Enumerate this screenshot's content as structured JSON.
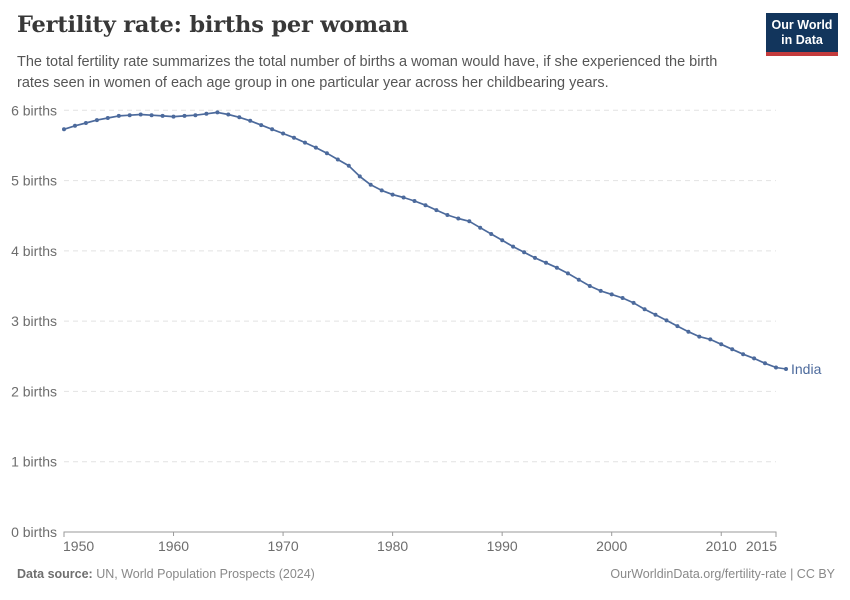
{
  "header": {
    "title": "Fertility rate: births per woman",
    "subtitle": "The total fertility rate summarizes the total number of births a woman would have, if she experienced the birth rates seen in women of each age group in one particular year across her childbearing years.",
    "logo": {
      "line1": "Our World",
      "line2": "in Data"
    }
  },
  "footer": {
    "datasource_label": "Data source:",
    "datasource_value": "UN, World Population Prospects (2024)",
    "attribution": "OurWorldinData.org/fertility-rate | CC BY"
  },
  "colors": {
    "series_blue": "#4c6a9c",
    "gridline": "#e2e2e2",
    "axis_line": "#9a9a9a",
    "tick_label": "#6d6d6d",
    "title_text": "#383838",
    "subtitle_text": "#565656",
    "footer_text": "#898989",
    "logo_navy": "#12355c",
    "logo_red": "#c43b3c"
  },
  "chart_data": {
    "type": "line",
    "title": "Fertility rate: births per woman",
    "xlabel": "",
    "ylabel": "births",
    "ylim": [
      0,
      6
    ],
    "xlim": [
      1950,
      2015
    ],
    "grid": "horizontal-dashed",
    "legend": "end-of-line-label",
    "ytick_values": [
      0,
      1,
      2,
      3,
      4,
      5,
      6
    ],
    "ytick_suffix": " births",
    "xticks": [
      1950,
      1960,
      1970,
      1980,
      1990,
      2000,
      2010,
      2015
    ],
    "x": [
      1950,
      1951,
      1952,
      1953,
      1954,
      1955,
      1956,
      1957,
      1958,
      1959,
      1960,
      1961,
      1962,
      1963,
      1964,
      1965,
      1966,
      1967,
      1968,
      1969,
      1970,
      1971,
      1972,
      1973,
      1974,
      1975,
      1976,
      1977,
      1978,
      1979,
      1980,
      1981,
      1982,
      1983,
      1984,
      1985,
      1986,
      1987,
      1988,
      1989,
      1990,
      1991,
      1992,
      1993,
      1994,
      1995,
      1996,
      1997,
      1998,
      1999,
      2000,
      2001,
      2002,
      2003,
      2004,
      2005,
      2006,
      2007,
      2008,
      2009,
      2010,
      2011,
      2012,
      2013,
      2014,
      2015
    ],
    "series": [
      {
        "name": "India",
        "color": "#4c6a9c",
        "values": [
          5.73,
          5.78,
          5.82,
          5.86,
          5.89,
          5.92,
          5.93,
          5.94,
          5.93,
          5.92,
          5.91,
          5.92,
          5.93,
          5.95,
          5.97,
          5.94,
          5.9,
          5.85,
          5.79,
          5.73,
          5.67,
          5.61,
          5.54,
          5.47,
          5.39,
          5.3,
          5.21,
          5.06,
          4.94,
          4.86,
          4.8,
          4.76,
          4.71,
          4.65,
          4.58,
          4.51,
          4.46,
          4.42,
          4.33,
          4.24,
          4.15,
          4.06,
          3.98,
          3.9,
          3.83,
          3.76,
          3.68,
          3.59,
          3.5,
          3.43,
          3.38,
          3.33,
          3.26,
          3.17,
          3.09,
          3.01,
          2.93,
          2.85,
          2.78,
          2.74,
          2.67,
          2.6,
          2.53,
          2.47,
          2.4,
          2.34
        ]
      }
    ]
  }
}
